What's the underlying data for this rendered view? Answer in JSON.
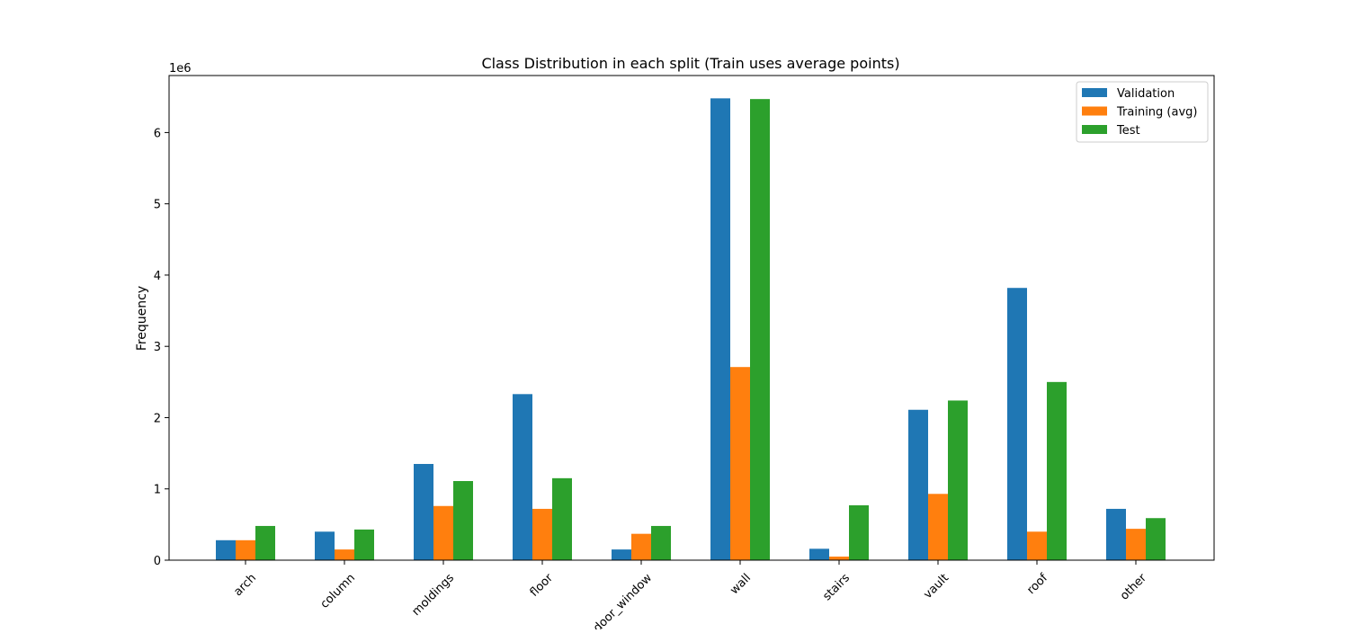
{
  "chart_data": {
    "type": "bar",
    "title": "Class Distribution in each split (Train uses average points)",
    "xlabel": "",
    "ylabel": "Frequency",
    "y_scale_label": "1e6",
    "ylim": [
      0,
      6800000
    ],
    "yticks": [
      0,
      1000000,
      2000000,
      3000000,
      4000000,
      5000000,
      6000000
    ],
    "ytick_labels": [
      "0",
      "1",
      "2",
      "3",
      "4",
      "5",
      "6"
    ],
    "grid": false,
    "legend_position": "top-right",
    "categories": [
      "arch",
      "column",
      "moldings",
      "floor",
      "door_window",
      "wall",
      "stairs",
      "vault",
      "roof",
      "other"
    ],
    "series": [
      {
        "name": "Validation",
        "color": "#1f77b4",
        "values": [
          280000,
          400000,
          1350000,
          2330000,
          150000,
          6480000,
          160000,
          2110000,
          3820000,
          720000
        ]
      },
      {
        "name": "Training (avg)",
        "color": "#ff7f0e",
        "values": [
          280000,
          150000,
          760000,
          720000,
          370000,
          2710000,
          50000,
          930000,
          400000,
          440000
        ]
      },
      {
        "name": "Test",
        "color": "#2ca02c",
        "values": [
          480000,
          430000,
          1110000,
          1150000,
          480000,
          6470000,
          770000,
          2240000,
          2500000,
          590000
        ]
      }
    ]
  }
}
